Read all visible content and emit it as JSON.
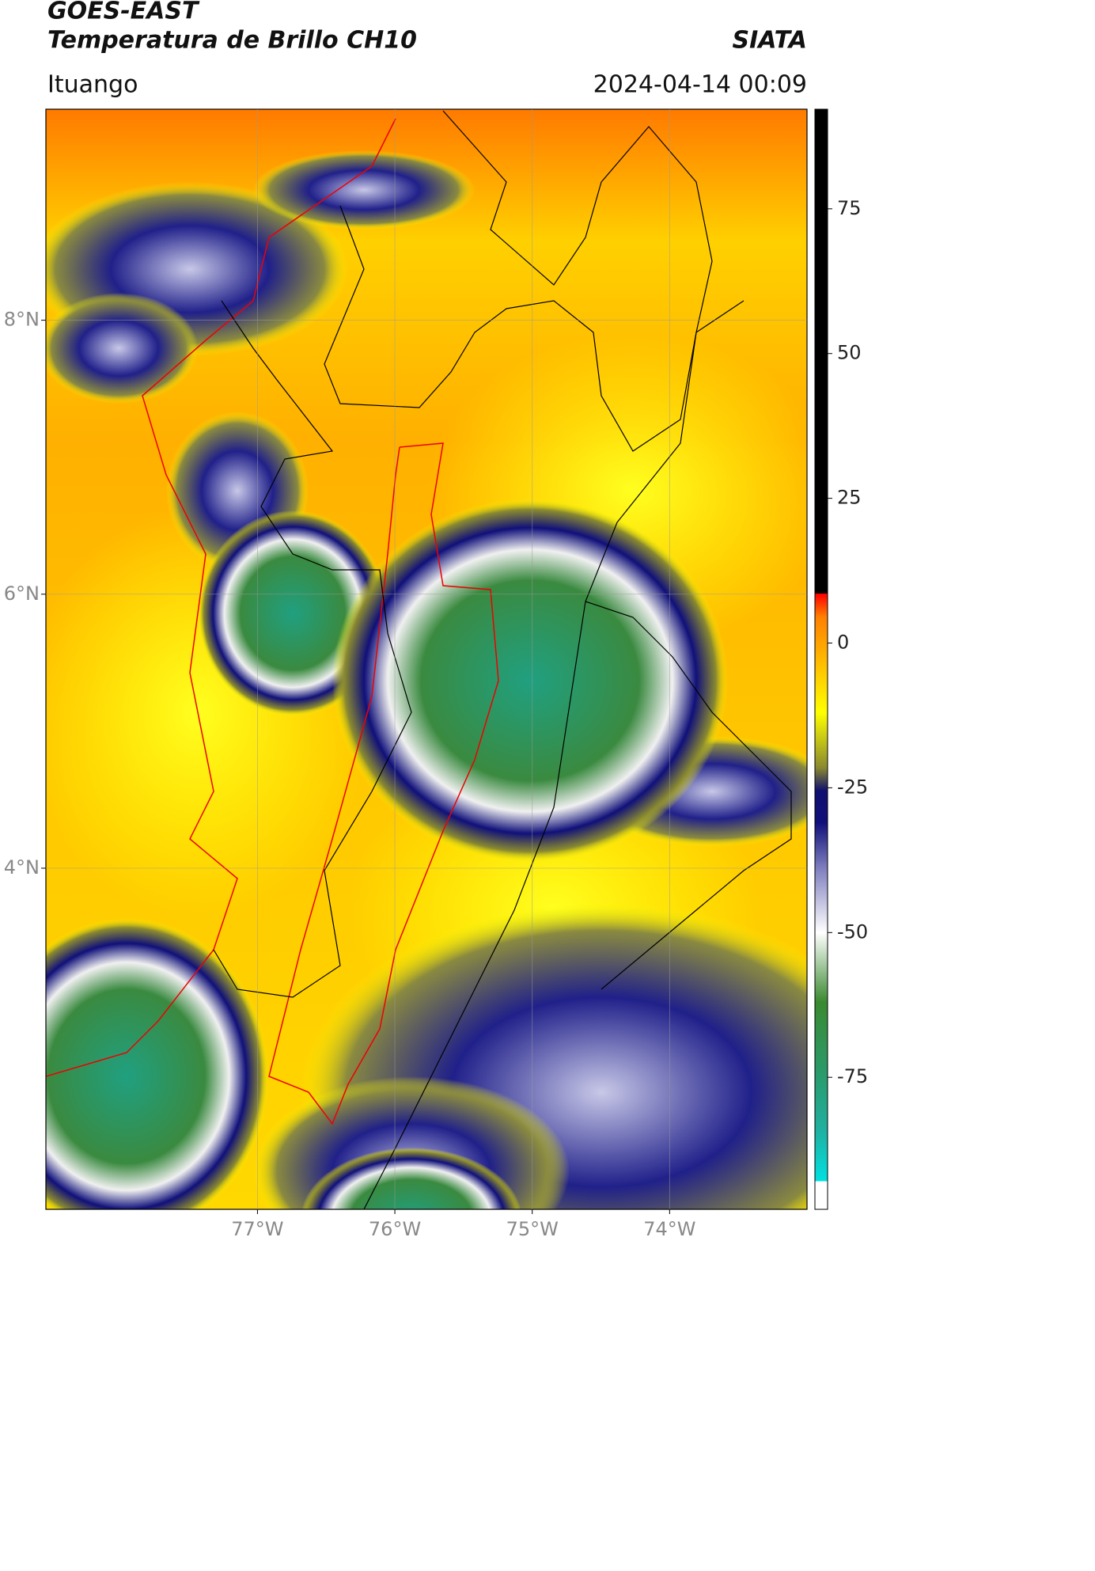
{
  "chart_data": {
    "type": "map",
    "title": "GOES-EAST",
    "subtitle": "Temperatura de Brillo CH10",
    "source": "SIATA",
    "location": "Ituango",
    "datetime": "2024-04-14 00:09",
    "xlim": [
      -78.54,
      -73.0
    ],
    "ylim": [
      1.51,
      9.54
    ],
    "xticks": [
      {
        "value": -77,
        "label": "77°W"
      },
      {
        "value": -76,
        "label": "76°W"
      },
      {
        "value": -75,
        "label": "75°W"
      },
      {
        "value": -74,
        "label": "74°W"
      }
    ],
    "yticks": [
      {
        "value": 8,
        "label": "8°N"
      },
      {
        "value": 6,
        "label": "6°N"
      },
      {
        "value": 4,
        "label": "4°N"
      }
    ],
    "grid": true,
    "clim": [
      -97.8,
      92.2
    ],
    "cticks": [
      75,
      50,
      25,
      0,
      -25,
      -50,
      -75
    ],
    "colormap": [
      [
        -97.8,
        "#ffffff"
      ],
      [
        -93,
        "#ffffff"
      ],
      [
        -92.9,
        "#00e0e0"
      ],
      [
        -84,
        "#20b0a0"
      ],
      [
        -74,
        "#2a9a6a"
      ],
      [
        -62,
        "#3a8a30"
      ],
      [
        -50,
        "#ffffff"
      ],
      [
        -39,
        "#8080c0"
      ],
      [
        -31,
        "#10107a"
      ],
      [
        -25.5,
        "#101070"
      ],
      [
        -21.5,
        "#8a8a30"
      ],
      [
        -12,
        "#ffff00"
      ],
      [
        4.5,
        "#ff8000"
      ],
      [
        8.5,
        "#ff0000"
      ],
      [
        8.6,
        "#000000"
      ],
      [
        92.2,
        "#000000"
      ]
    ]
  }
}
